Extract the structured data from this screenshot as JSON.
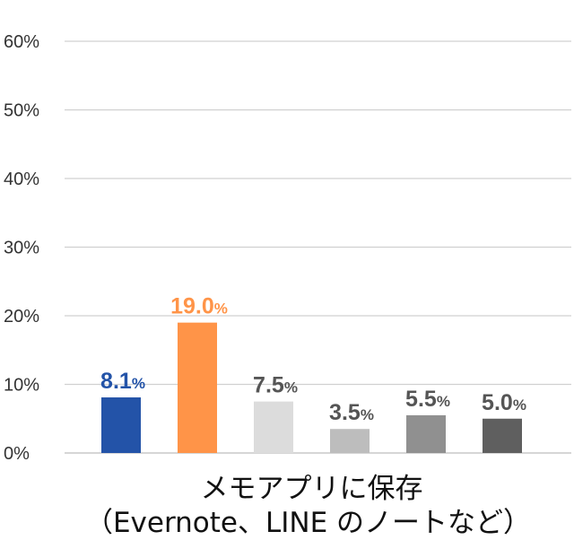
{
  "chart_data": {
    "type": "bar",
    "categories": [
      "メモアプリに保存（Evernote、LINE のノートなど）"
    ],
    "series": [
      {
        "values": [
          8.1
        ],
        "label": "8.1%",
        "color": "#2353a8",
        "label_color": "#2353a8"
      },
      {
        "values": [
          19.0
        ],
        "label": "19.0%",
        "color": "#ff9448",
        "label_color": "#ff9448"
      },
      {
        "values": [
          7.5
        ],
        "label": "7.5%",
        "color": "#dcdcdc",
        "label_color": "#555555"
      },
      {
        "values": [
          3.5
        ],
        "label": "3.5%",
        "color": "#bdbdbd",
        "label_color": "#555555"
      },
      {
        "values": [
          5.5
        ],
        "label": "5.5%",
        "color": "#909090",
        "label_color": "#555555"
      },
      {
        "values": [
          5.0
        ],
        "label": "5.0%",
        "color": "#5f5f5f",
        "label_color": "#555555"
      }
    ],
    "y_ticks": [
      "0%",
      "10%",
      "20%",
      "30%",
      "40%",
      "50%",
      "60%"
    ],
    "ylim": [
      0,
      60
    ],
    "grid": true,
    "category_label_lines": [
      "メモアプリに保存",
      "（Evernote、LINE のノートなど）"
    ],
    "title": "",
    "xlabel": "",
    "ylabel": ""
  }
}
